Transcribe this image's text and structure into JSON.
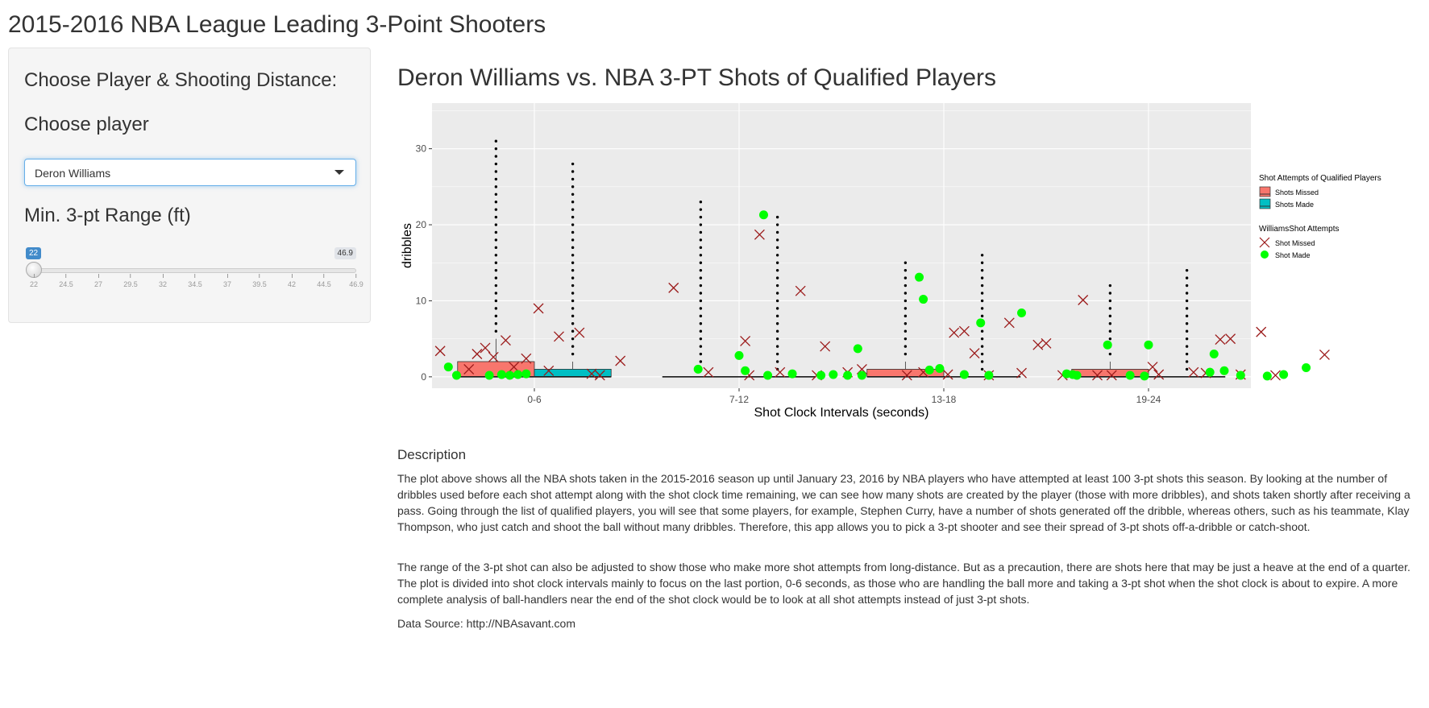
{
  "app": {
    "title": "2015-2016 NBA League Leading 3-Point Shooters"
  },
  "sidebar": {
    "section_title": "Choose Player & Shooting Distance:",
    "player_label": "Choose player",
    "player_value": "Deron Williams",
    "range_label": "Min. 3-pt Range (ft)",
    "slider": {
      "min": 22,
      "max": 46.9,
      "value": 22,
      "value_label": "22",
      "max_label": "46.9",
      "ticks": [
        "22",
        "24.5",
        "27",
        "29.5",
        "32",
        "34.5",
        "37",
        "39.5",
        "42",
        "44.5",
        "46.9"
      ]
    }
  },
  "main": {
    "plot_title": "Deron Williams vs. NBA 3-PT Shots of Qualified Players",
    "description_heading": "Description",
    "paragraph1": "The plot above shows all the NBA shots taken in the 2015-2016 season up until January 23, 2016 by NBA players who have attempted at least 100 3-pt shots this season. By looking at the number of dribbles used before each shot attempt along with the shot clock time remaining, we can see how many shots are created by the player (those with more dribbles), and shots taken shortly after receiving a pass. Going through the list of qualified players, you will see that some players, for example, Stephen Curry, have a number of shots generated off the dribble, whereas others, such as his teammate, Klay Thompson, who just catch and shoot the ball without many dribbles. Therefore, this app allows you to pick a 3-pt shooter and see their spread of 3-pt shots off-a-dribble or catch-shoot.",
    "paragraph2": "The range of the 3-pt shot can also be adjusted to show those who make more shot attempts from long-distance. But as a precaution, there are shots here that may be just a heave at the end of a quarter. The plot is divided into shot clock intervals mainly to focus on the last portion, 0-6 seconds, as those who are handling the ball more and taking a 3-pt shot when the shot clock is about to expire. A more complete analysis of ball-handlers near the end of the shot clock would be to look at all shot attempts instead of just 3-pt shots.",
    "data_source": "Data Source: http://NBAsavant.com"
  },
  "chart_data": {
    "type": "boxplot",
    "xlabel": "Shot Clock Intervals (seconds)",
    "ylabel": "dribbles",
    "categories": [
      "0-6",
      "7-12",
      "13-18",
      "19-24"
    ],
    "ylim": [
      -1.5,
      36
    ],
    "yticks": [
      0,
      10,
      20,
      30
    ],
    "grid": true,
    "legend_position": "right",
    "colors": {
      "missed": "#f8766d",
      "made": "#00bfc4",
      "williams_missed": "#9b1a1a",
      "williams_made": "#00ff00",
      "panel": "#ebebeb"
    },
    "legend1": {
      "title": "Shot Attempts of Qualified Players",
      "items": [
        "Shots Missed",
        "Shots Made"
      ]
    },
    "legend2": {
      "title": "WilliamsShot Attempts",
      "items": [
        "Shot Missed",
        "Shot Made"
      ]
    },
    "boxes": [
      {
        "category": "0-6",
        "group": "missed",
        "q1": 0,
        "median": 0,
        "q3": 2,
        "whisker_high": 5,
        "outlier_max": 31
      },
      {
        "category": "0-6",
        "group": "made",
        "q1": 0,
        "median": 0,
        "q3": 1,
        "whisker_high": 2,
        "outlier_max": 28
      },
      {
        "category": "7-12",
        "group": "missed",
        "q1": 0,
        "median": 0,
        "q3": 0,
        "whisker_high": 0,
        "outlier_max": 23
      },
      {
        "category": "7-12",
        "group": "made",
        "q1": 0,
        "median": 0,
        "q3": 0,
        "whisker_high": 0,
        "outlier_max": 21
      },
      {
        "category": "13-18",
        "group": "missed",
        "q1": 0,
        "median": 0,
        "q3": 1,
        "whisker_high": 2,
        "outlier_max": 15
      },
      {
        "category": "13-18",
        "group": "made",
        "q1": 0,
        "median": 0,
        "q3": 0,
        "whisker_high": 0,
        "outlier_max": 16
      },
      {
        "category": "19-24",
        "group": "missed",
        "q1": 0,
        "median": 0,
        "q3": 1,
        "whisker_high": 2,
        "outlier_max": 12
      },
      {
        "category": "19-24",
        "group": "made",
        "q1": 0,
        "median": 0,
        "q3": 0,
        "whisker_high": 0,
        "outlier_max": 14
      }
    ],
    "williams_missed": [
      [
        0.54,
        3.4
      ],
      [
        0.72,
        3.0
      ],
      [
        0.76,
        3.8
      ],
      [
        0.8,
        2.6
      ],
      [
        0.86,
        4.8
      ],
      [
        0.96,
        2.4
      ],
      [
        1.02,
        9.0
      ],
      [
        1.07,
        0.8
      ],
      [
        1.12,
        5.3
      ],
      [
        1.22,
        5.8
      ],
      [
        1.32,
        0.2
      ],
      [
        1.42,
        2.1
      ],
      [
        0.68,
        1.0
      ],
      [
        0.9,
        1.3
      ],
      [
        1.28,
        0.4
      ],
      [
        1.68,
        11.7
      ],
      [
        1.85,
        0.6
      ],
      [
        2.03,
        4.7
      ],
      [
        2.1,
        18.7
      ],
      [
        2.2,
        0.6
      ],
      [
        2.3,
        11.3
      ],
      [
        2.42,
        4.0
      ],
      [
        2.53,
        0.6
      ],
      [
        2.6,
        1.0
      ],
      [
        2.05,
        0.2
      ],
      [
        2.38,
        0.2
      ],
      [
        2.82,
        0.2
      ],
      [
        2.9,
        0.6
      ],
      [
        3.05,
        5.8
      ],
      [
        3.1,
        6.0
      ],
      [
        3.15,
        3.1
      ],
      [
        3.32,
        7.1
      ],
      [
        3.38,
        0.5
      ],
      [
        3.46,
        4.2
      ],
      [
        3.5,
        4.4
      ],
      [
        3.58,
        0.2
      ],
      [
        3.68,
        10.1
      ],
      [
        3.75,
        0.2
      ],
      [
        3.02,
        0.3
      ],
      [
        3.22,
        0.2
      ],
      [
        3.82,
        0.2
      ],
      [
        4.02,
        1.3
      ],
      [
        4.05,
        0.3
      ],
      [
        4.22,
        0.6
      ],
      [
        4.35,
        4.9
      ],
      [
        4.4,
        5.0
      ],
      [
        4.45,
        0.3
      ],
      [
        4.55,
        5.9
      ],
      [
        4.62,
        0.2
      ],
      [
        4.86,
        2.9
      ],
      [
        4.28,
        0.5
      ]
    ],
    "williams_made": [
      [
        0.58,
        1.3
      ],
      [
        0.62,
        0.2
      ],
      [
        0.78,
        0.2
      ],
      [
        0.84,
        0.3
      ],
      [
        0.88,
        0.2
      ],
      [
        0.92,
        0.3
      ],
      [
        0.96,
        0.4
      ],
      [
        1.8,
        1.0
      ],
      [
        2.0,
        2.8
      ],
      [
        2.03,
        0.8
      ],
      [
        2.12,
        21.3
      ],
      [
        2.14,
        0.2
      ],
      [
        2.26,
        0.4
      ],
      [
        2.4,
        0.2
      ],
      [
        2.46,
        0.3
      ],
      [
        2.53,
        0.2
      ],
      [
        2.58,
        3.7
      ],
      [
        2.6,
        0.2
      ],
      [
        2.88,
        13.1
      ],
      [
        2.9,
        10.2
      ],
      [
        2.93,
        0.9
      ],
      [
        2.98,
        1.1
      ],
      [
        3.1,
        0.3
      ],
      [
        3.18,
        7.1
      ],
      [
        3.22,
        0.2
      ],
      [
        3.38,
        8.4
      ],
      [
        3.6,
        0.4
      ],
      [
        3.63,
        0.3
      ],
      [
        3.65,
        0.2
      ],
      [
        3.8,
        4.2
      ],
      [
        3.91,
        0.2
      ],
      [
        3.98,
        0.1
      ],
      [
        4.0,
        4.2
      ],
      [
        4.3,
        0.6
      ],
      [
        4.32,
        3.0
      ],
      [
        4.37,
        0.8
      ],
      [
        4.45,
        0.2
      ],
      [
        4.58,
        0.1
      ],
      [
        4.66,
        0.3
      ],
      [
        4.77,
        1.2
      ]
    ]
  }
}
